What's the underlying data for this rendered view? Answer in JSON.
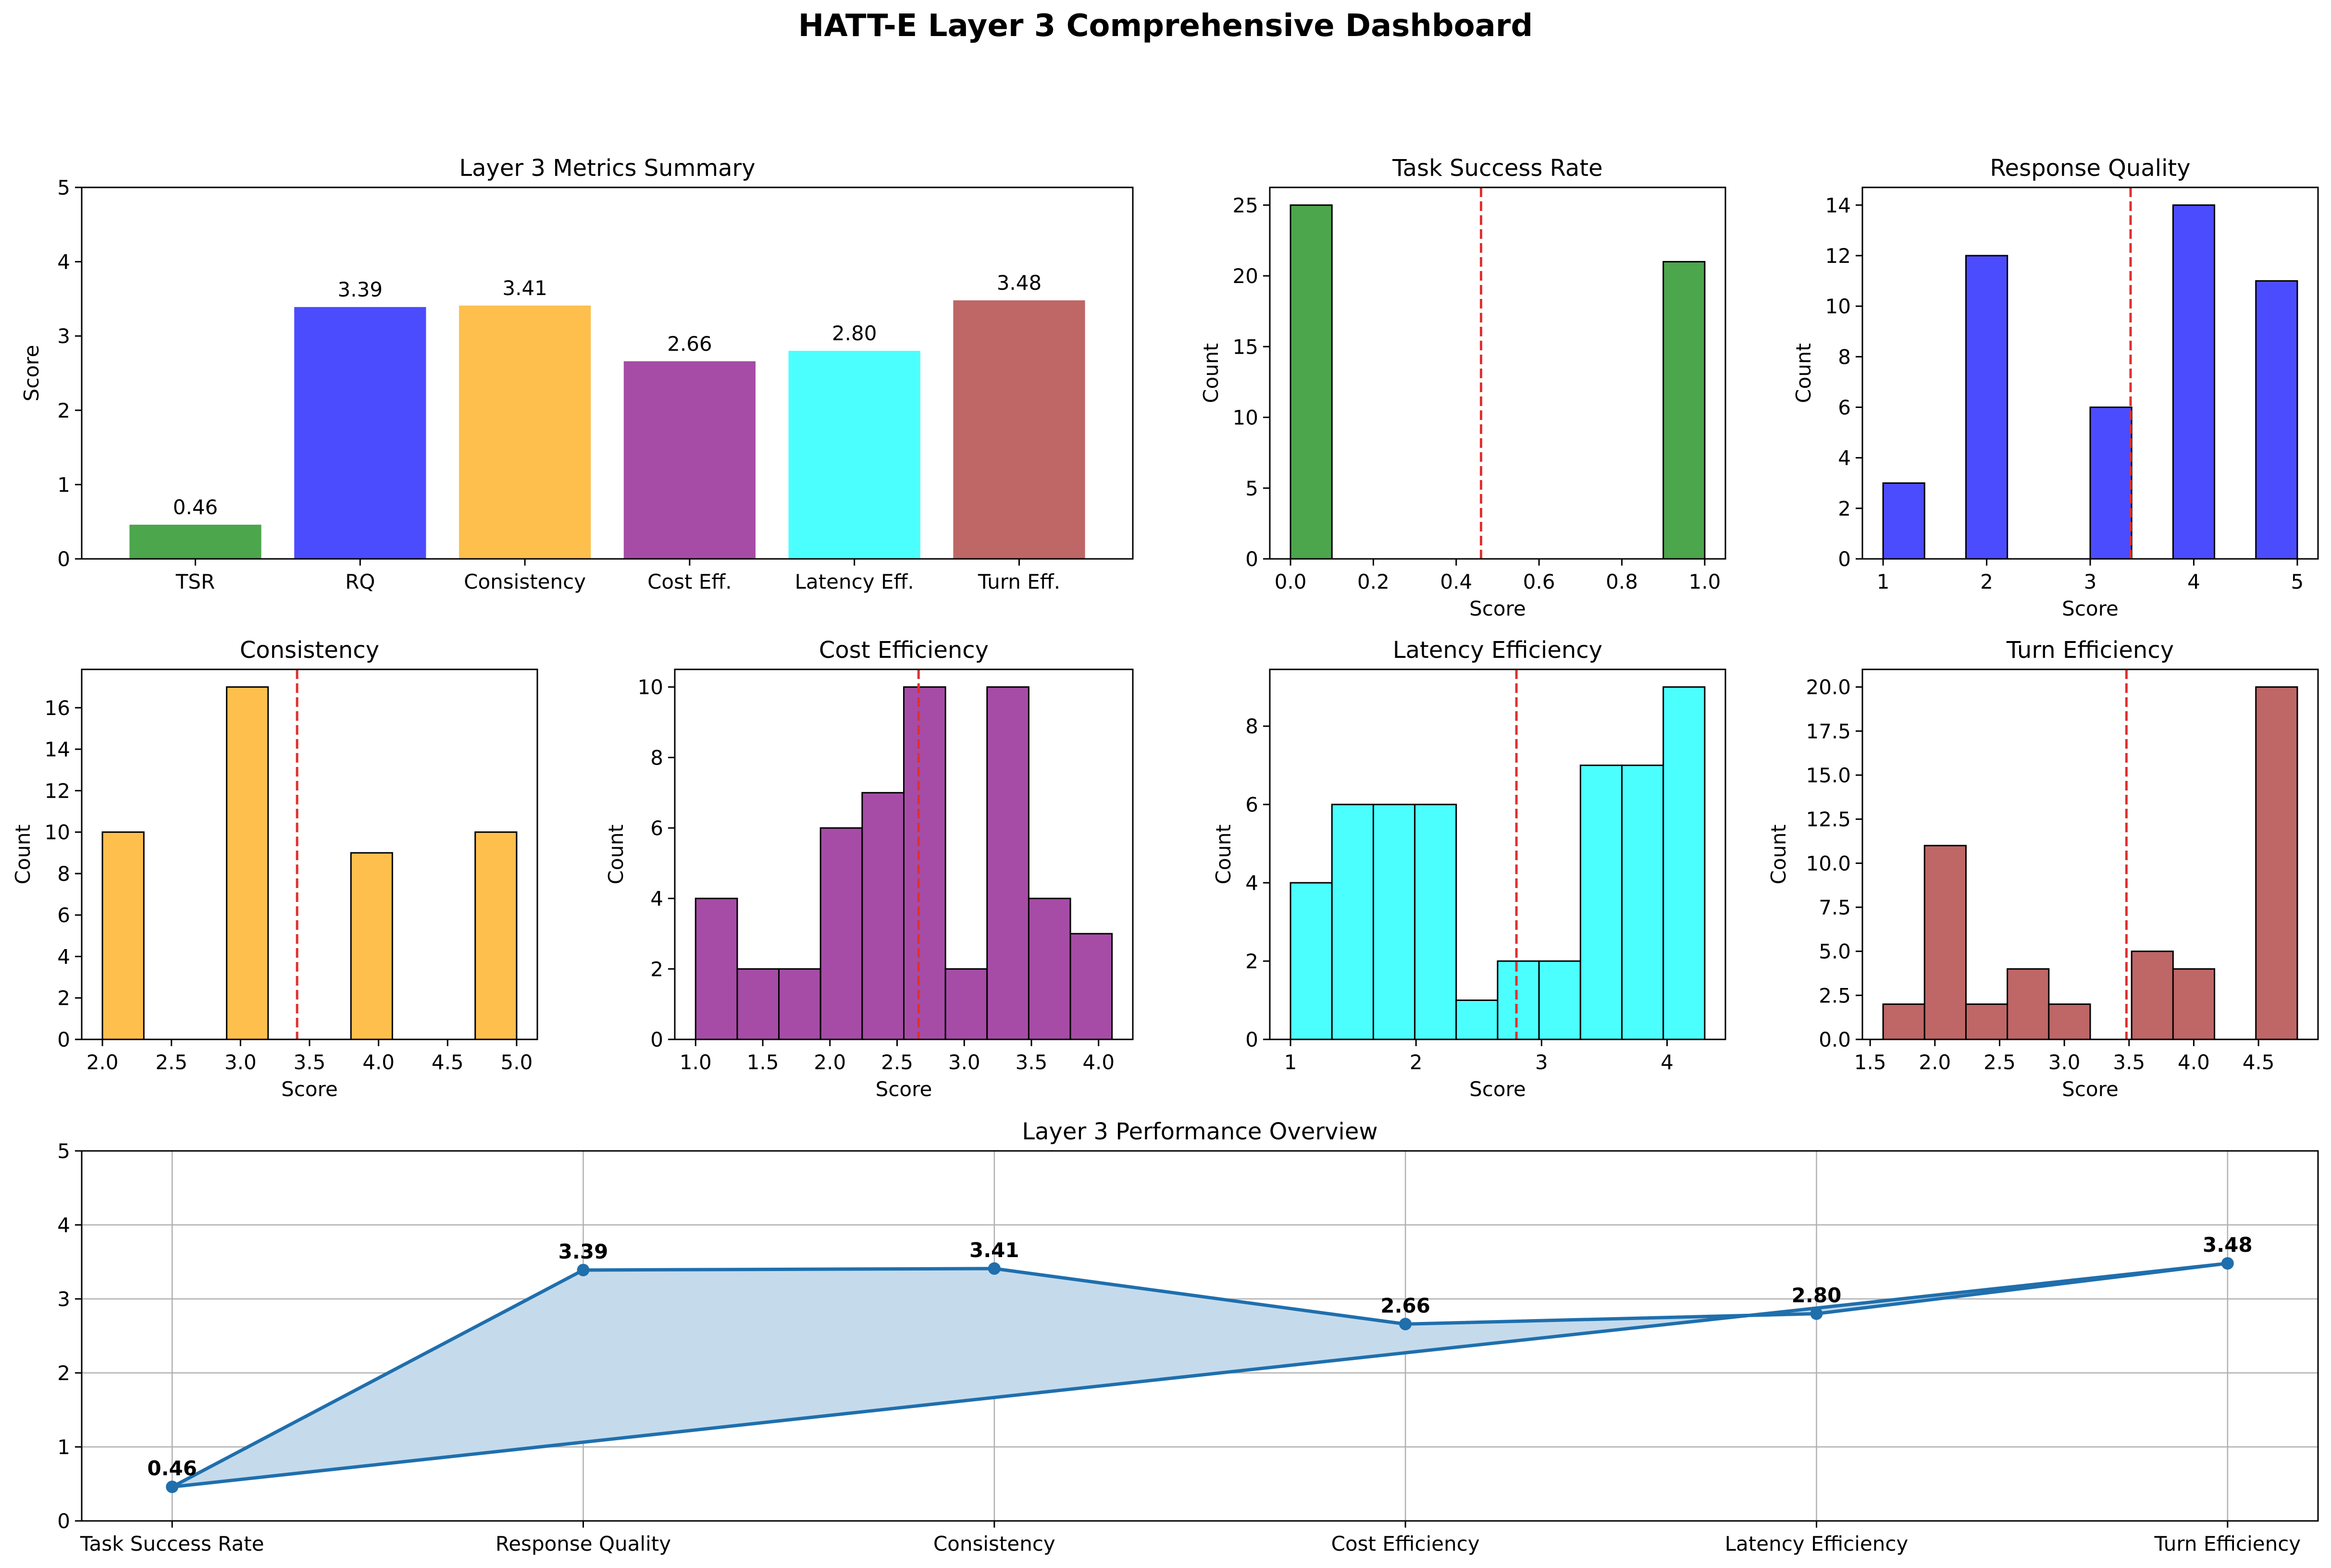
{
  "page_title": "HATT-E Layer 3 Comprehensive Dashboard",
  "colors": {
    "tsr": "#4ca64c",
    "rq": "#4c4cff",
    "consistency": "#ffbf4c",
    "cost": "#a64ca6",
    "latency": "#4cffff",
    "turn": "#bf6666",
    "mean_line": "#e0302f",
    "overview_line": "#1f6fad",
    "overview_fill": "#c5dbec"
  },
  "chart_data": [
    {
      "id": "summary",
      "type": "bar",
      "title": "Layer 3 Metrics Summary",
      "xlabel": "",
      "ylabel": "Score",
      "categories": [
        "TSR",
        "RQ",
        "Consistency",
        "Cost Eff.",
        "Latency Eff.",
        "Turn Eff."
      ],
      "values": [
        0.46,
        3.39,
        3.41,
        2.66,
        2.8,
        3.48
      ],
      "value_labels": [
        "0.46",
        "3.39",
        "3.41",
        "2.66",
        "2.80",
        "3.48"
      ],
      "colors": [
        "#4ca64c",
        "#4c4cff",
        "#ffbf4c",
        "#a64ca6",
        "#4cffff",
        "#bf6666"
      ],
      "ylim": [
        0,
        5
      ],
      "yticks": [
        "0",
        "1",
        "2",
        "3",
        "4",
        "5"
      ],
      "grid": false
    },
    {
      "id": "tsr",
      "type": "histogram",
      "title": "Task Success Rate",
      "xlabel": "Score",
      "ylabel": "Count",
      "color": "#4ca64c",
      "bin_edges": [
        0.0,
        0.1,
        0.2,
        0.3,
        0.4,
        0.5,
        0.6,
        0.7,
        0.8,
        0.9,
        1.0
      ],
      "counts": [
        25,
        0,
        0,
        0,
        0,
        0,
        0,
        0,
        0,
        21
      ],
      "mean": 0.46,
      "xlim": [
        -0.05,
        1.05
      ],
      "ylim": [
        0,
        26.25
      ],
      "xticks": [
        {
          "v": 0.0,
          "label": "0.0"
        },
        {
          "v": 0.2,
          "label": "0.2"
        },
        {
          "v": 0.4,
          "label": "0.4"
        },
        {
          "v": 0.6,
          "label": "0.6"
        },
        {
          "v": 0.8,
          "label": "0.8"
        },
        {
          "v": 1.0,
          "label": "1.0"
        }
      ],
      "yticks": [
        {
          "v": 0,
          "label": "0"
        },
        {
          "v": 5,
          "label": "5"
        },
        {
          "v": 10,
          "label": "10"
        },
        {
          "v": 15,
          "label": "15"
        },
        {
          "v": 20,
          "label": "20"
        },
        {
          "v": 25,
          "label": "25"
        }
      ]
    },
    {
      "id": "rq",
      "type": "histogram",
      "title": "Response Quality",
      "xlabel": "Score",
      "ylabel": "Count",
      "color": "#4c4cff",
      "bin_edges": [
        1.0,
        1.4,
        1.8,
        2.2,
        2.6,
        3.0,
        3.4,
        3.8,
        4.2,
        4.6,
        5.0
      ],
      "counts": [
        3,
        0,
        12,
        0,
        0,
        6,
        0,
        14,
        0,
        11
      ],
      "mean": 3.39,
      "xlim": [
        0.8,
        5.2
      ],
      "ylim": [
        0,
        14.7
      ],
      "xticks": [
        {
          "v": 1,
          "label": "1"
        },
        {
          "v": 2,
          "label": "2"
        },
        {
          "v": 3,
          "label": "3"
        },
        {
          "v": 4,
          "label": "4"
        },
        {
          "v": 5,
          "label": "5"
        }
      ],
      "yticks": [
        {
          "v": 0,
          "label": "0"
        },
        {
          "v": 2,
          "label": "2"
        },
        {
          "v": 4,
          "label": "4"
        },
        {
          "v": 6,
          "label": "6"
        },
        {
          "v": 8,
          "label": "8"
        },
        {
          "v": 10,
          "label": "10"
        },
        {
          "v": 12,
          "label": "12"
        },
        {
          "v": 14,
          "label": "14"
        }
      ]
    },
    {
      "id": "consistency",
      "type": "histogram",
      "title": "Consistency",
      "xlabel": "Score",
      "ylabel": "Count",
      "color": "#ffbf4c",
      "bin_edges": [
        2.0,
        2.3,
        2.6,
        2.9,
        3.2,
        3.5,
        3.8,
        4.1,
        4.4,
        4.7,
        5.0
      ],
      "counts": [
        10,
        0,
        0,
        17,
        0,
        0,
        9,
        0,
        0,
        10
      ],
      "mean": 3.41,
      "xlim": [
        1.85,
        5.15
      ],
      "ylim": [
        0,
        17.85
      ],
      "xticks": [
        {
          "v": 2.0,
          "label": "2.0"
        },
        {
          "v": 2.5,
          "label": "2.5"
        },
        {
          "v": 3.0,
          "label": "3.0"
        },
        {
          "v": 3.5,
          "label": "3.5"
        },
        {
          "v": 4.0,
          "label": "4.0"
        },
        {
          "v": 4.5,
          "label": "4.5"
        },
        {
          "v": 5.0,
          "label": "5.0"
        }
      ],
      "yticks": [
        {
          "v": 0,
          "label": "0"
        },
        {
          "v": 2,
          "label": "2"
        },
        {
          "v": 4,
          "label": "4"
        },
        {
          "v": 6,
          "label": "6"
        },
        {
          "v": 8,
          "label": "8"
        },
        {
          "v": 10,
          "label": "10"
        },
        {
          "v": 12,
          "label": "12"
        },
        {
          "v": 14,
          "label": "14"
        },
        {
          "v": 16,
          "label": "16"
        }
      ]
    },
    {
      "id": "cost",
      "type": "histogram",
      "title": "Cost Efficiency",
      "xlabel": "Score",
      "ylabel": "Count",
      "color": "#a64ca6",
      "bin_edges": [
        1.0,
        1.31,
        1.62,
        1.93,
        2.24,
        2.55,
        2.86,
        3.17,
        3.48,
        3.79,
        4.1
      ],
      "counts": [
        4,
        2,
        2,
        6,
        7,
        10,
        2,
        10,
        4,
        3
      ],
      "mean": 2.66,
      "xlim": [
        0.845,
        4.255
      ],
      "ylim": [
        0,
        10.5
      ],
      "xticks": [
        {
          "v": 1.0,
          "label": "1.0"
        },
        {
          "v": 1.5,
          "label": "1.5"
        },
        {
          "v": 2.0,
          "label": "2.0"
        },
        {
          "v": 2.5,
          "label": "2.5"
        },
        {
          "v": 3.0,
          "label": "3.0"
        },
        {
          "v": 3.5,
          "label": "3.5"
        },
        {
          "v": 4.0,
          "label": "4.0"
        }
      ],
      "yticks": [
        {
          "v": 0,
          "label": "0"
        },
        {
          "v": 2,
          "label": "2"
        },
        {
          "v": 4,
          "label": "4"
        },
        {
          "v": 6,
          "label": "6"
        },
        {
          "v": 8,
          "label": "8"
        },
        {
          "v": 10,
          "label": "10"
        }
      ]
    },
    {
      "id": "latency",
      "type": "histogram",
      "title": "Latency Efficiency",
      "xlabel": "Score",
      "ylabel": "Count",
      "color": "#4cffff",
      "bin_edges": [
        1.0,
        1.33,
        1.66,
        1.99,
        2.32,
        2.65,
        2.98,
        3.31,
        3.64,
        3.97,
        4.3
      ],
      "counts": [
        4,
        6,
        6,
        6,
        1,
        2,
        2,
        7,
        7,
        9
      ],
      "mean": 2.8,
      "xlim": [
        0.835,
        4.465
      ],
      "ylim": [
        0,
        9.45
      ],
      "xticks": [
        {
          "v": 1,
          "label": "1"
        },
        {
          "v": 2,
          "label": "2"
        },
        {
          "v": 3,
          "label": "3"
        },
        {
          "v": 4,
          "label": "4"
        }
      ],
      "yticks": [
        {
          "v": 0,
          "label": "0"
        },
        {
          "v": 2,
          "label": "2"
        },
        {
          "v": 4,
          "label": "4"
        },
        {
          "v": 6,
          "label": "6"
        },
        {
          "v": 8,
          "label": "8"
        }
      ]
    },
    {
      "id": "turn",
      "type": "histogram",
      "title": "Turn Efficiency",
      "xlabel": "Score",
      "ylabel": "Count",
      "color": "#bf6666",
      "bin_edges": [
        1.6,
        1.92,
        2.24,
        2.56,
        2.88,
        3.2,
        3.52,
        3.84,
        4.16,
        4.48,
        4.8
      ],
      "counts": [
        2,
        11,
        2,
        4,
        2,
        0,
        5,
        4,
        0,
        20
      ],
      "mean": 3.48,
      "xlim": [
        1.44,
        4.96
      ],
      "ylim": [
        0,
        21
      ],
      "xticks": [
        {
          "v": 1.5,
          "label": "1.5"
        },
        {
          "v": 2.0,
          "label": "2.0"
        },
        {
          "v": 2.5,
          "label": "2.5"
        },
        {
          "v": 3.0,
          "label": "3.0"
        },
        {
          "v": 3.5,
          "label": "3.5"
        },
        {
          "v": 4.0,
          "label": "4.0"
        },
        {
          "v": 4.5,
          "label": "4.5"
        }
      ],
      "yticks": [
        {
          "v": 0,
          "label": "0.0"
        },
        {
          "v": 2.5,
          "label": "2.5"
        },
        {
          "v": 5,
          "label": "5.0"
        },
        {
          "v": 7.5,
          "label": "7.5"
        },
        {
          "v": 10,
          "label": "10.0"
        },
        {
          "v": 12.5,
          "label": "12.5"
        },
        {
          "v": 15,
          "label": "15.0"
        },
        {
          "v": 17.5,
          "label": "17.5"
        },
        {
          "v": 20,
          "label": "20.0"
        }
      ]
    },
    {
      "id": "overview",
      "type": "line",
      "title": "Layer 3 Performance Overview",
      "xlabel": "",
      "ylabel": "",
      "categories": [
        "Task Success Rate",
        "Response Quality",
        "Consistency",
        "Cost Efficiency",
        "Latency Efficiency",
        "Turn Efficiency"
      ],
      "values": [
        0.46,
        3.39,
        3.41,
        2.66,
        2.8,
        3.48
      ],
      "value_labels": [
        "0.46",
        "3.39",
        "3.41",
        "2.66",
        "2.80",
        "3.48"
      ],
      "closed": true,
      "filled": true,
      "ylim": [
        0,
        5
      ],
      "yticks": [
        "0",
        "1",
        "2",
        "3",
        "4",
        "5"
      ],
      "grid": true
    }
  ]
}
